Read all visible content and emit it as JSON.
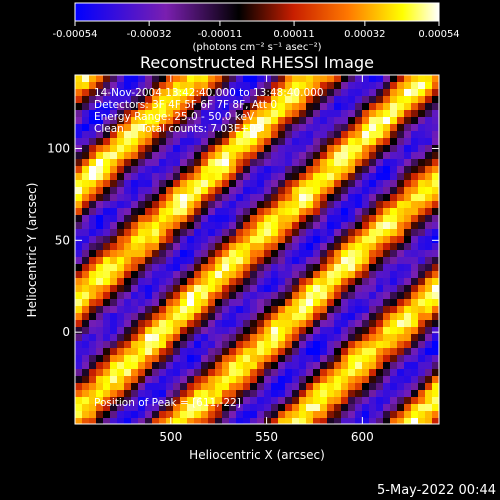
{
  "chart_data": {
    "type": "heatmap",
    "title": "Reconstructed RHESSI Image",
    "xlabel": "Heliocentric X (arcsec)",
    "ylabel": "Heliocentric Y (arcsec)",
    "xlim": [
      450,
      640
    ],
    "ylim": [
      -50,
      140
    ],
    "x_ticks": [
      {
        "value": 500,
        "label": "500"
      },
      {
        "value": 550,
        "label": "550"
      },
      {
        "value": 600,
        "label": "600"
      }
    ],
    "y_ticks": [
      {
        "value": 0,
        "label": "0"
      },
      {
        "value": 50,
        "label": "50"
      },
      {
        "value": 100,
        "label": "100"
      }
    ],
    "colorbar": {
      "range": [
        -0.00054,
        0.00054
      ],
      "tick_labels": [
        "-0.00054",
        "-0.00032",
        "-0.00011",
        "0.00011",
        "0.00032",
        "0.00054"
      ],
      "units_label": "(photons cm⁻² s⁻¹ asec⁻²)",
      "colors": [
        "#0000ff",
        "#7a1fb0",
        "#000000",
        "#c81e00",
        "#ff7800",
        "#ffff00",
        "#ffffff"
      ]
    },
    "annotations": {
      "time": "14-Nov-2004 13:42:40.000 to 13:48:40.000",
      "detectors": "Detectors: 3F 4F 5F 6F 7F 8F, Att 0",
      "energy": "Energy Range: 25.0 - 50.0 keV",
      "clean": "Clean     Total counts: 7.03E+03",
      "peak": "Position of Peak = [611,-22]"
    },
    "grid": false
  },
  "footer": {
    "date": "5-May-2022 00:44"
  }
}
